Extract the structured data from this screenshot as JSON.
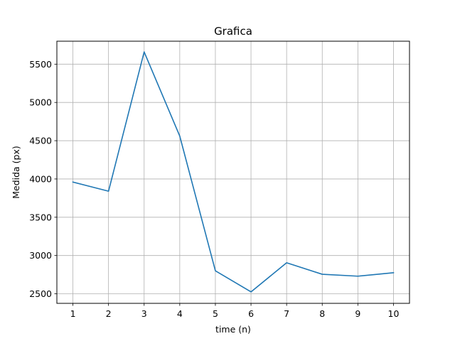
{
  "chart_data": {
    "type": "line",
    "title": "Grafica",
    "xlabel": "time (n)",
    "ylabel": "Medida (px)",
    "grid": true,
    "legend": "none",
    "xlim": [
      0.55,
      10.45
    ],
    "ylim": [
      2375,
      5800
    ],
    "x_ticks": [
      1,
      2,
      3,
      4,
      5,
      6,
      7,
      8,
      9,
      10
    ],
    "y_ticks": [
      2500,
      3000,
      3500,
      4000,
      4500,
      5000,
      5500
    ],
    "series": [
      {
        "color": "#1f77b4",
        "x": [
          1,
          2,
          3,
          4,
          5,
          6,
          7,
          8,
          9,
          10
        ],
        "y": [
          3960,
          3840,
          5660,
          4560,
          2800,
          2525,
          2905,
          2755,
          2730,
          2775
        ]
      }
    ]
  }
}
